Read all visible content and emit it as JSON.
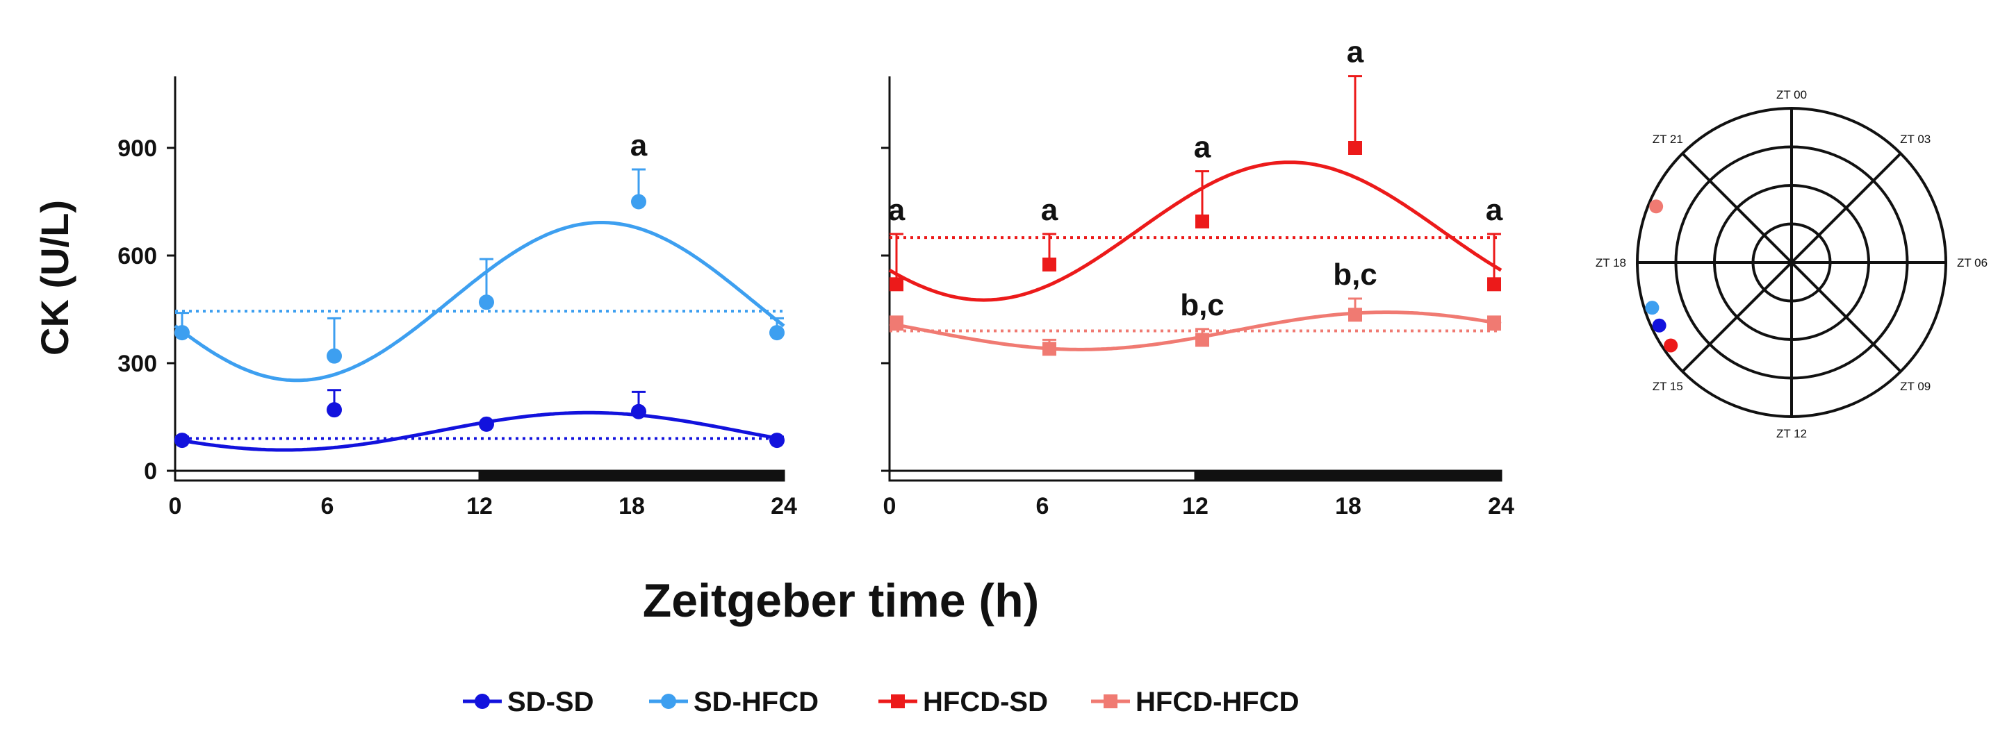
{
  "chart_data": {
    "type": "line",
    "ylabel": "CK  (U/L)",
    "xlabel": "Zeitgeber time (h)",
    "x_ticks": [
      "0",
      "6",
      "12",
      "18",
      "24"
    ],
    "y_ticks": [
      "0",
      "300",
      "600",
      "900"
    ],
    "ylim": [
      0,
      1100
    ],
    "xlim": [
      0,
      24
    ],
    "light_dark_bar": {
      "light": [
        0,
        12
      ],
      "dark": [
        12,
        24
      ]
    },
    "colors": {
      "SD-SD": "#1212dd",
      "SD-HFCD": "#3d9ff0",
      "HFCD-SD": "#ec1a1a",
      "HFCD-HFCD": "#f07a72"
    },
    "panels": [
      {
        "name": "left",
        "series": [
          {
            "name": "SD-SD",
            "marker": "circle",
            "x": [
              0,
              6,
              12,
              18,
              24
            ],
            "y": [
              85,
              170,
              130,
              165,
              85
            ],
            "err": [
              10,
              55,
              0,
              55,
              10
            ],
            "mesor": 90,
            "fit": {
              "mesor": 110,
              "amp": 52,
              "peak_zt": 16.3
            }
          },
          {
            "name": "SD-HFCD",
            "marker": "circle",
            "x": [
              0,
              6,
              12,
              18,
              24
            ],
            "y": [
              385,
              320,
              470,
              750,
              385
            ],
            "err": [
              55,
              105,
              120,
              90,
              40
            ],
            "mesor": 445,
            "fit": {
              "mesor": 472,
              "amp": 220,
              "peak_zt": 16.8
            }
          }
        ],
        "annotations": [
          {
            "x": 18,
            "y": 750,
            "text": "a"
          }
        ]
      },
      {
        "name": "right",
        "series": [
          {
            "name": "HFCD-SD",
            "marker": "square",
            "x": [
              0,
              6,
              12,
              18,
              24
            ],
            "y": [
              520,
              575,
              695,
              900,
              520
            ],
            "err": [
              140,
              85,
              140,
              200,
              140
            ],
            "mesor": 650,
            "fit": {
              "mesor": 668,
              "amp": 192,
              "peak_zt": 15.7
            }
          },
          {
            "name": "HFCD-HFCD",
            "marker": "square",
            "x": [
              0,
              6,
              12,
              18,
              24
            ],
            "y": [
              410,
              340,
              365,
              435,
              410
            ],
            "err": [
              20,
              25,
              30,
              45,
              20
            ],
            "mesor": 390,
            "fit": {
              "mesor": 390,
              "amp": 52,
              "peak_zt": 19.5
            }
          }
        ],
        "annotations": [
          {
            "x": 0,
            "y": 520,
            "text": "a"
          },
          {
            "x": 6,
            "y": 575,
            "text": "a"
          },
          {
            "x": 12,
            "y": 695,
            "text": "a"
          },
          {
            "x": 18,
            "y": 900,
            "text": "a"
          },
          {
            "x": 24,
            "y": 520,
            "text": "a"
          },
          {
            "x": 12,
            "y": 365,
            "text": "b,c"
          },
          {
            "x": 18,
            "y": 435,
            "text": "b,c"
          }
        ]
      }
    ],
    "polar": {
      "labels": [
        "ZT 00",
        "ZT 03",
        "ZT 06",
        "ZT 09",
        "ZT 12",
        "ZT 15",
        "ZT 18",
        "ZT 21"
      ],
      "rings": 4,
      "points": [
        {
          "series": "SD-HFCD",
          "zt": 16.8,
          "r": 0.95
        },
        {
          "series": "SD-SD",
          "zt": 16.3,
          "r": 0.95
        },
        {
          "series": "HFCD-SD",
          "zt": 15.7,
          "r": 0.95
        },
        {
          "series": "HFCD-HFCD",
          "zt": 19.5,
          "r": 0.95
        }
      ]
    },
    "legend": [
      {
        "label": "SD-SD",
        "marker": "circle"
      },
      {
        "label": "SD-HFCD",
        "marker": "circle"
      },
      {
        "label": "HFCD-SD",
        "marker": "square"
      },
      {
        "label": "HFCD-HFCD",
        "marker": "square"
      }
    ]
  }
}
